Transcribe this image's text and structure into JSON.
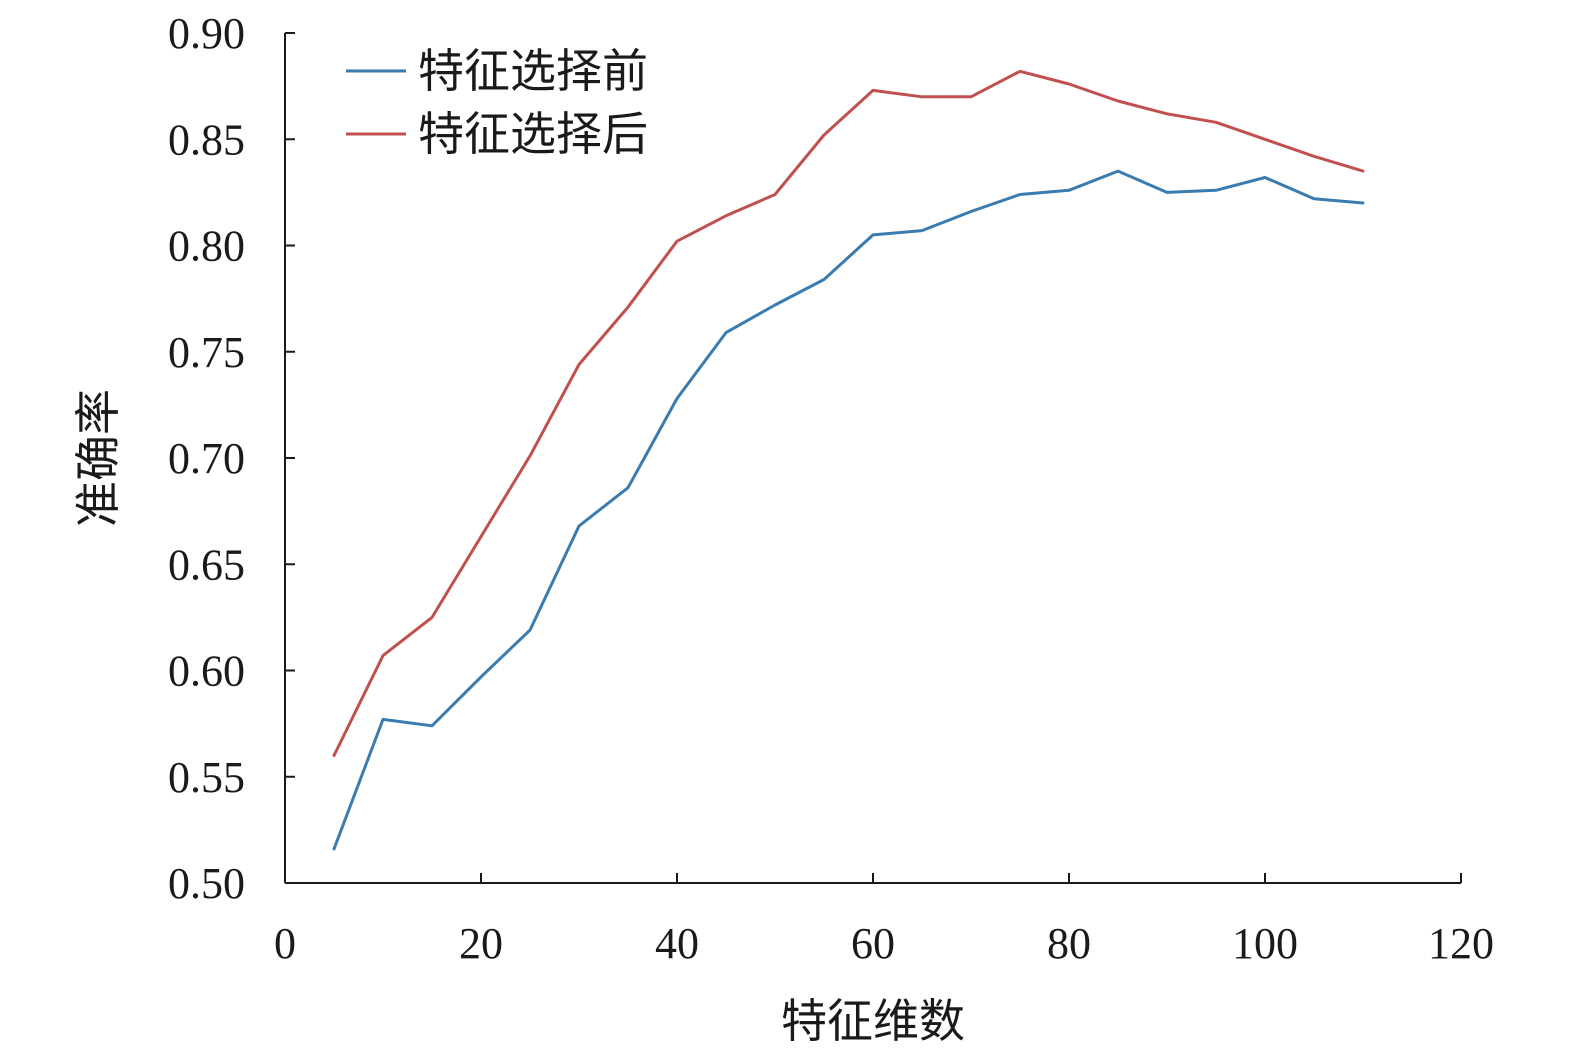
{
  "chart_data": {
    "type": "line",
    "title": "",
    "xlabel": "特征维数",
    "ylabel": "准确率",
    "xlim": [
      0,
      120
    ],
    "ylim": [
      0.5,
      0.9
    ],
    "xticks": [
      0,
      20,
      40,
      60,
      80,
      100,
      120
    ],
    "xtick_labels": [
      "0",
      "20",
      "40",
      "60",
      "80",
      "100",
      "120"
    ],
    "yticks": [
      0.5,
      0.55,
      0.6,
      0.65,
      0.7,
      0.75,
      0.8,
      0.85,
      0.9
    ],
    "ytick_labels": [
      "0.50",
      "0.55",
      "0.60",
      "0.65",
      "0.70",
      "0.75",
      "0.80",
      "0.85",
      "0.90"
    ],
    "grid": false,
    "legend_position": "top-left",
    "x": [
      5,
      10,
      15,
      20,
      25,
      30,
      35,
      40,
      45,
      50,
      55,
      60,
      65,
      70,
      75,
      80,
      85,
      90,
      95,
      100,
      105,
      110
    ],
    "series": [
      {
        "name": "特征选择前",
        "color": "#3a7bb0",
        "values": [
          0.516,
          0.577,
          0.574,
          0.597,
          0.619,
          0.668,
          0.686,
          0.728,
          0.759,
          0.772,
          0.784,
          0.805,
          0.807,
          0.816,
          0.824,
          0.826,
          0.835,
          0.825,
          0.826,
          0.832,
          0.822,
          0.82
        ]
      },
      {
        "name": "特征选择后",
        "color": "#c0504d",
        "values": [
          0.56,
          0.607,
          0.625,
          0.663,
          0.701,
          0.744,
          0.771,
          0.802,
          0.814,
          0.824,
          0.852,
          0.873,
          0.87,
          0.87,
          0.882,
          0.876,
          0.868,
          0.862,
          0.858,
          0.85,
          0.842,
          0.835
        ]
      }
    ]
  }
}
